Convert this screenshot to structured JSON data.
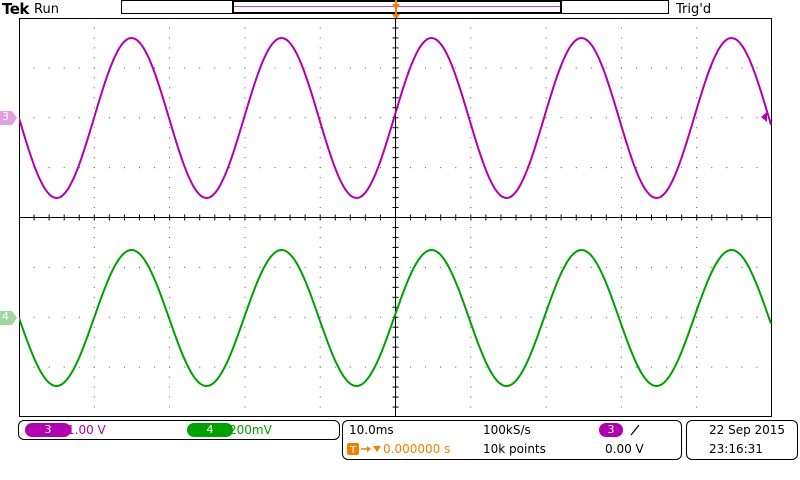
{
  "header": {
    "brand": "Tek",
    "run_state": "Run",
    "trigger_status": "Trig'd",
    "trigger_marker": "T"
  },
  "channels": [
    {
      "id": "3",
      "color": "#b000b0",
      "scale": "1.00 V",
      "label": "3"
    },
    {
      "id": "4",
      "color": "#00a000",
      "scale": "200mV",
      "label": "4"
    }
  ],
  "timebase": {
    "scale": "10.0ms",
    "sample_rate": "100kS/s",
    "delay": "0.000000 s",
    "record_length": "10k points"
  },
  "trigger": {
    "source": "3",
    "slope_icon": "rising-edge-icon",
    "level": "0.00 V"
  },
  "datetime": {
    "date": "22 Sep  2015",
    "time": "23:16:31"
  },
  "colors": {
    "ch3": "#b000b0",
    "ch4": "#00a000",
    "trigger_orange": "#f08000",
    "grid": "#000000"
  }
}
